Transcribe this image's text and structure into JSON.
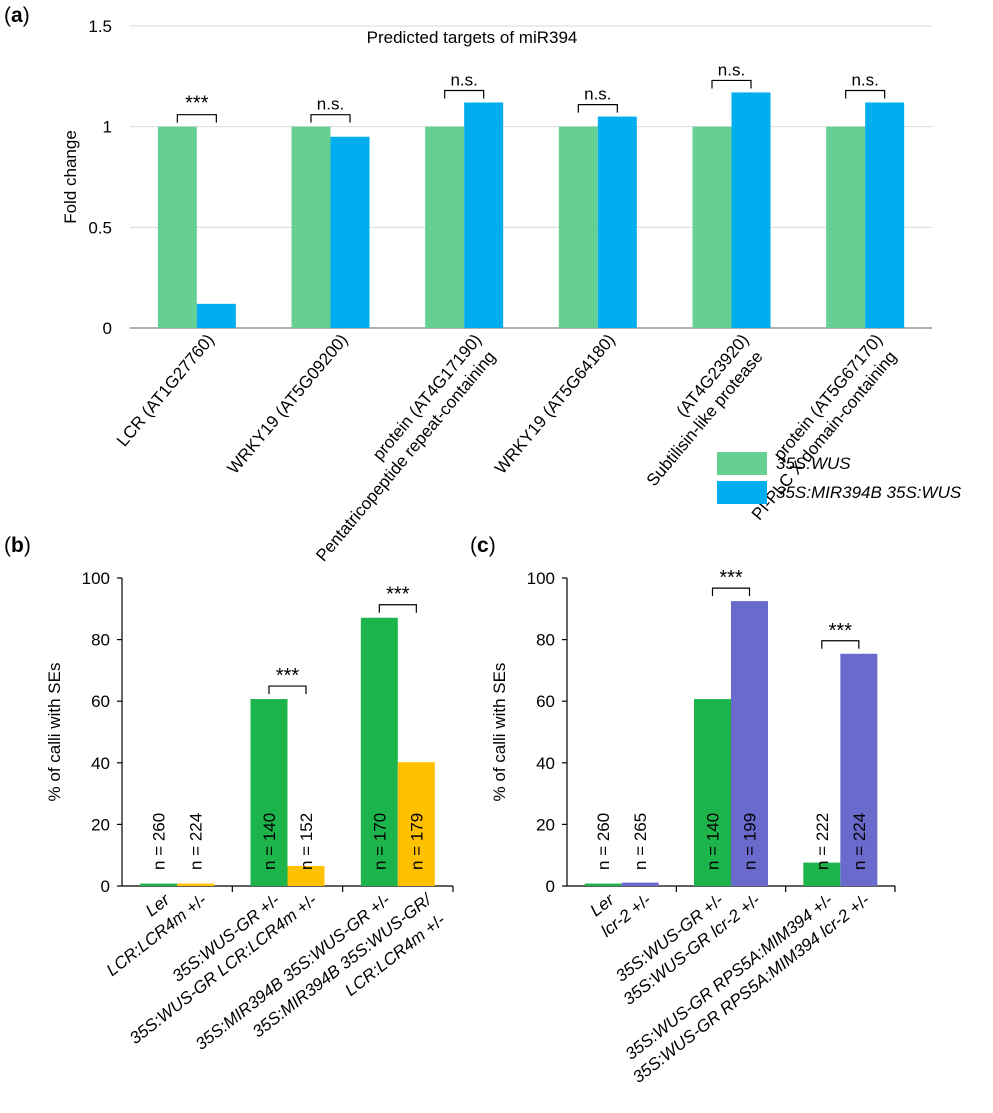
{
  "colors": {
    "wus": "#66cf94",
    "mir394": "#00aeef",
    "ler": "#1db54b",
    "lcr": "#ffc000",
    "lcr2": "#6a6acd",
    "grid": "#d9d9d9",
    "axis": "#000000"
  },
  "chart_data": [
    {
      "type": "bar",
      "panel_label": "a",
      "title": "Predicted targets of miR394",
      "ylabel": "Fold change",
      "ylim": [
        0,
        1.5
      ],
      "yticks": [
        "0",
        "0.5",
        "1",
        "1.5"
      ],
      "grid": true,
      "legend_position": "bottom-right",
      "categories": [
        [
          "LCR (AT1G27760)"
        ],
        [
          "WRKY19 (AT5G09200)"
        ],
        [
          "Pentatricopeptide repeat-containing",
          "protein (AT4G17190)"
        ],
        [
          "WRKY19 (AT5G64180)"
        ],
        [
          "Subtilisin-like protease",
          "(AT4G23920)"
        ],
        [
          "PI-PLC X domain-containing",
          "protein (AT5G67170)"
        ]
      ],
      "series": [
        {
          "name": "35S:WUS",
          "values": [
            1,
            1,
            1,
            1,
            1,
            1
          ]
        },
        {
          "name": "35S:MIR394B 35S:WUS",
          "values": [
            0.12,
            0.95,
            1.12,
            1.05,
            1.17,
            1.12
          ]
        }
      ],
      "significance": [
        "***",
        "n.s.",
        "n.s.",
        "n.s.",
        "n.s.",
        "n.s."
      ]
    },
    {
      "type": "bar",
      "panel_label": "b",
      "ylabel": "% of calli with SEs",
      "ylim": [
        0,
        100
      ],
      "yticks": [
        "0",
        "20",
        "40",
        "60",
        "80",
        "100"
      ],
      "grid": false,
      "categories": [
        "Ler",
        "LCR:LCR4m +/-",
        "35S:WUS-GR +/-",
        "35S:WUS-GR LCR:LCR4m +/-",
        "35S:MIR394B 35S:WUS-GR +/-",
        "35S:MIR394B 35S:WUS-GR/ LCR:LCR4m +/-"
      ],
      "values": [
        0.8,
        0.8,
        60.7,
        6.5,
        87.1,
        40.2
      ],
      "n_labels": [
        "n = 260",
        "n = 224",
        "n = 140",
        "n = 152",
        "n = 170",
        "n = 179"
      ],
      "significance": [
        "***",
        "***"
      ]
    },
    {
      "type": "bar",
      "panel_label": "c",
      "ylabel": "% of calli with SEs",
      "ylim": [
        0,
        100
      ],
      "yticks": [
        "0",
        "20",
        "40",
        "60",
        "80",
        "100"
      ],
      "grid": false,
      "categories": [
        "Ler",
        "lcr-2 +/-",
        "35S:WUS-GR +/-",
        "35S:WUS-GR lcr-2 +/-",
        "35S:WUS-GR RPS5A:MIM394 +/-",
        "35S:WUS-GR RPS5A:MIM394 lcr-2 +/-"
      ],
      "values": [
        0.8,
        1.1,
        60.7,
        92.5,
        7.6,
        75.4
      ],
      "n_labels": [
        "n = 260",
        "n = 265",
        "n = 140",
        "n = 199",
        "n = 222",
        "n = 224"
      ],
      "significance": [
        "***",
        "***"
      ]
    }
  ]
}
